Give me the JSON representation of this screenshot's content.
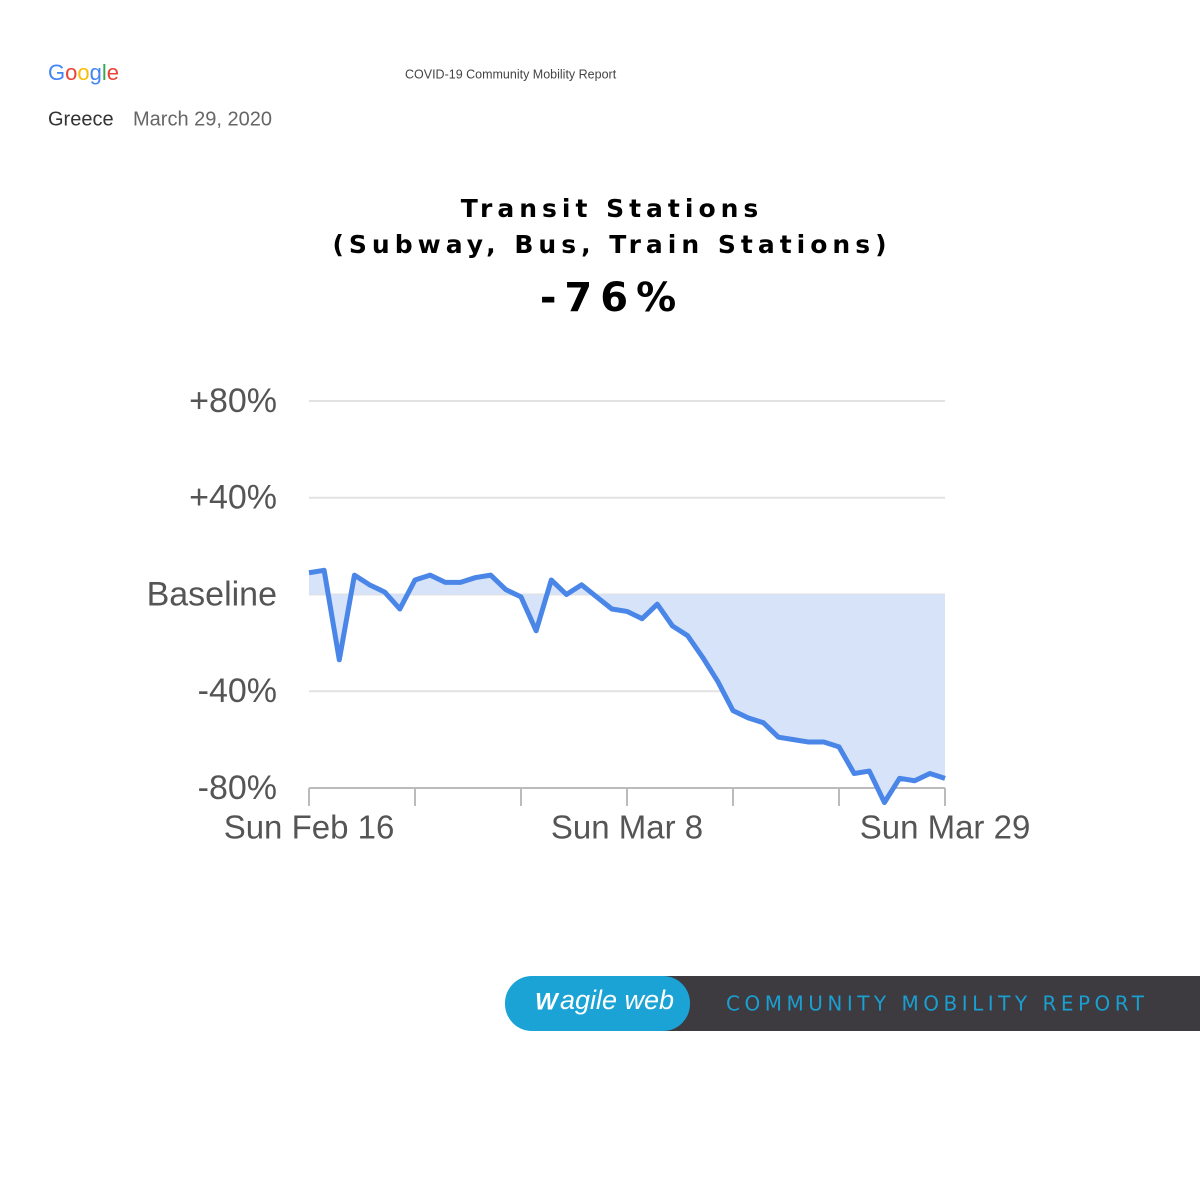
{
  "header": {
    "brand": "Google",
    "report_title": "COVID-19 Community Mobility Report",
    "region": "Greece",
    "date": "March 29, 2020"
  },
  "chart_data": {
    "type": "line",
    "title": "Transit Stations",
    "subtitle": "(Subway, Bus, Train Stations)",
    "headline": {
      "value": -76,
      "label": "-76%"
    },
    "categories": [
      "Sun Feb 16",
      null,
      null,
      null,
      null,
      null,
      null,
      null,
      null,
      null,
      null,
      null,
      null,
      null,
      null,
      null,
      null,
      null,
      null,
      null,
      null,
      "Sun Mar 8",
      null,
      null,
      null,
      null,
      null,
      null,
      null,
      null,
      null,
      null,
      null,
      null,
      null,
      null,
      null,
      null,
      null,
      null,
      null,
      null,
      "Sun Mar 29"
    ],
    "series": [
      {
        "name": "Transit Stations",
        "color": "#4a86e8",
        "fill": "#d7e3f8",
        "values": [
          9,
          10,
          -27,
          8,
          4,
          1,
          -6,
          6,
          8,
          5,
          5,
          7,
          8,
          2,
          -1,
          -15,
          6,
          0,
          4,
          -1,
          -6,
          -7,
          -10,
          -4,
          -13,
          -17,
          -26,
          -36,
          -48,
          -51,
          -53,
          -59,
          -60,
          -61,
          -61,
          -63,
          -74,
          -73,
          -86,
          -76,
          -77,
          -74,
          -76
        ]
      }
    ],
    "ylim": [
      -80,
      80
    ],
    "yticks": [
      {
        "value": 80,
        "label": "+80%"
      },
      {
        "value": 40,
        "label": "+40%"
      },
      {
        "value": 0,
        "label": "Baseline"
      },
      {
        "value": -40,
        "label": "-40%"
      },
      {
        "value": -80,
        "label": "-80%"
      }
    ],
    "grid": true
  },
  "footer": {
    "logo": "agile web",
    "tagline": "COMMUNITY MOBILITY REPORT"
  }
}
